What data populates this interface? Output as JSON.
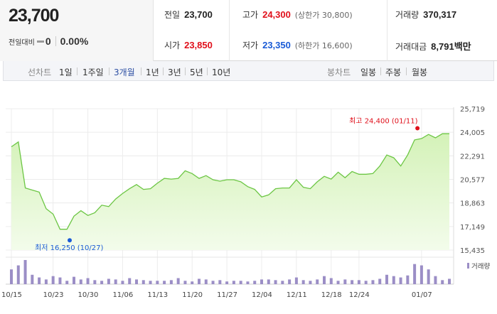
{
  "header": {
    "current_price": "23,700",
    "diff_label": "전일대비",
    "diff_value": "0",
    "diff_rate": "0.00%",
    "stats": {
      "prev_close_label": "전일",
      "prev_close": "23,700",
      "open_label": "시가",
      "open": "23,850",
      "high_label": "고가",
      "high": "24,300",
      "upper_limit": "(상한가 30,800)",
      "low_label": "저가",
      "low": "23,350",
      "lower_limit": "(하한가 16,600)",
      "volume_label": "거래량",
      "volume": "370,317",
      "amount_label": "거래대금",
      "amount": "8,791",
      "amount_unit": "백만"
    }
  },
  "toolbar": {
    "line_chart_label": "선차트",
    "ranges": [
      "1일",
      "1주일",
      "3개월",
      "1년",
      "3년",
      "5년",
      "10년"
    ],
    "active_range": "3개월",
    "candle_chart_label": "봉차트",
    "candles": [
      "일봉",
      "주봉",
      "월봉"
    ]
  },
  "colors": {
    "line": "#6cc644",
    "area_top": "#d4f2b8",
    "area_bottom": "#f3fceb",
    "volume": "#9b8ec6",
    "high_marker": "#e0101b",
    "low_marker": "#1a5bd6"
  },
  "chart_data": {
    "type": "area",
    "series": [
      {
        "values": [
          22950,
          23300,
          19950,
          19800,
          19650,
          18450,
          18050,
          16950,
          16950,
          17900,
          18300,
          17950,
          18150,
          18700,
          18600,
          19150,
          19550,
          19900,
          20200,
          19850,
          19900,
          20300,
          20650,
          20600,
          20650,
          21200,
          21000,
          20650,
          20850,
          20550,
          20450,
          20550,
          20550,
          20400,
          20050,
          19850,
          19300,
          19450,
          19900,
          19950,
          19950,
          20550,
          20000,
          19900,
          20400,
          20800,
          20600,
          21100,
          20700,
          21150,
          20950,
          20950,
          21000,
          21550,
          22350,
          22150,
          21550,
          22350,
          23450,
          23550,
          23850,
          23600,
          23900,
          23900
        ]
      },
      {
        "name": "거래량",
        "values": [
          22,
          28,
          36,
          14,
          10,
          7,
          12,
          10,
          5,
          11,
          7,
          9,
          6,
          5,
          8,
          7,
          5,
          9,
          7,
          6,
          5,
          5,
          5,
          6,
          9,
          5,
          4,
          8,
          7,
          5,
          6,
          4,
          5,
          5,
          4,
          5,
          7,
          7,
          6,
          5,
          7,
          10,
          6,
          5,
          7,
          12,
          9,
          5,
          7,
          6,
          6,
          5,
          6,
          8,
          14,
          12,
          10,
          13,
          30,
          28,
          22,
          12,
          6,
          8
        ]
      }
    ],
    "x_labels": [
      "10/15",
      "10/23",
      "10/30",
      "11/06",
      "11/13",
      "11/20",
      "11/27",
      "12/04",
      "12/11",
      "12/18",
      "12/24",
      "01/07"
    ],
    "y_ticks": [
      "25,719",
      "24,005",
      "22,291",
      "20,577",
      "18,863",
      "17,149",
      "15,435"
    ],
    "ylim": [
      15435,
      25719
    ],
    "volume_legend": "거래량",
    "high_annotation": "최고 24,400 (01/11)",
    "low_annotation": "최저 16,250 (10/27)",
    "grid": true
  }
}
